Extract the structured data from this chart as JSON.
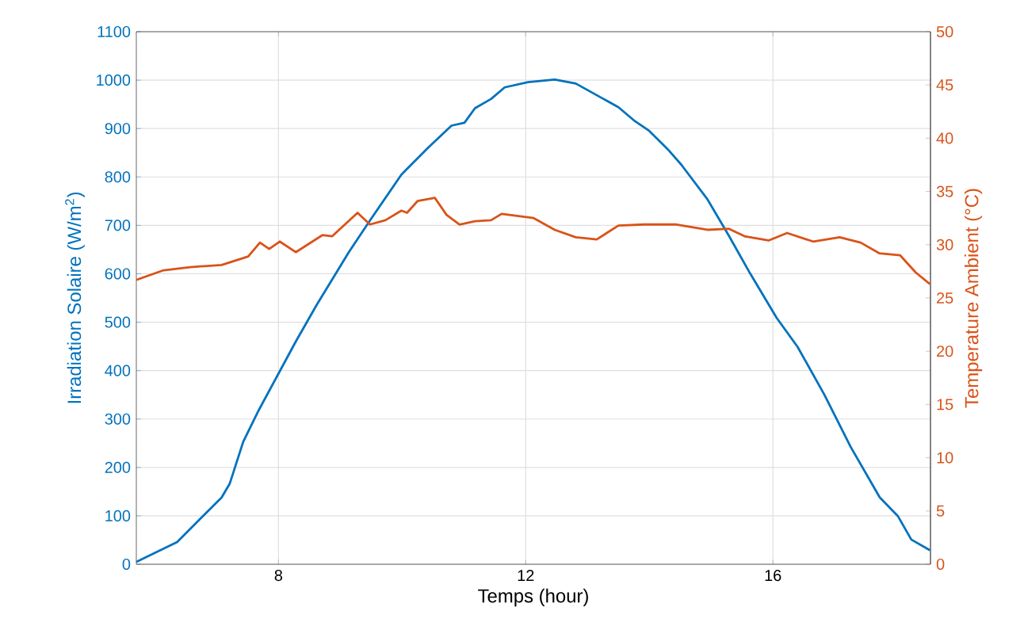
{
  "chart_data": {
    "type": "line",
    "xlabel": "Temps (hour)",
    "ylabel": "Irradiation Solaire (W/m$^{2}$)",
    "y2label": "Temperature Ambient (°C)",
    "xlim": [
      5.7,
      18.55
    ],
    "xticks": [
      8,
      12,
      16
    ],
    "ylim": [
      0,
      1100
    ],
    "yticks": [
      0,
      100,
      200,
      300,
      400,
      500,
      600,
      700,
      800,
      900,
      1000,
      1100
    ],
    "y2lim": [
      0,
      50
    ],
    "y2ticks": [
      0,
      5,
      10,
      15,
      20,
      25,
      30,
      35,
      40,
      45,
      50
    ],
    "grid": true,
    "series": [
      {
        "color": "#0072bd",
        "x": [
          5.7,
          6.36,
          7.08,
          7.21,
          7.43,
          7.68,
          8.28,
          8.62,
          9.14,
          9.48,
          9.99,
          10.42,
          10.8,
          11.01,
          11.18,
          11.44,
          11.66,
          12.04,
          12.47,
          12.81,
          13.5,
          13.75,
          14.0,
          14.3,
          14.52,
          14.94,
          15.29,
          15.63,
          16.06,
          16.4,
          16.83,
          17.26,
          17.73,
          18.02,
          18.24,
          18.54
        ],
        "values": [
          5,
          46,
          138,
          166,
          253,
          318,
          460,
          536,
          645,
          710,
          805,
          860,
          906,
          912,
          942,
          961,
          985,
          996,
          1001,
          993,
          944,
          917,
          895,
          857,
          825,
          754,
          678,
          601,
          509,
          449,
          351,
          242,
          138,
          100,
          51,
          29
        ]
      },
      {
        "color": "#d95319",
        "axis": "y2",
        "x": [
          5.7,
          6.14,
          6.57,
          7.08,
          7.51,
          7.7,
          7.85,
          8.02,
          8.28,
          8.71,
          8.87,
          9.28,
          9.48,
          9.73,
          9.99,
          10.08,
          10.25,
          10.53,
          10.72,
          10.93,
          11.18,
          11.44,
          11.61,
          12.13,
          12.47,
          12.81,
          13.15,
          13.5,
          13.92,
          14.44,
          14.94,
          15.29,
          15.54,
          15.93,
          16.23,
          16.65,
          17.08,
          17.42,
          17.72,
          18.06,
          18.31,
          18.54
        ],
        "values": [
          26.7,
          27.6,
          27.9,
          28.1,
          28.9,
          30.2,
          29.6,
          30.3,
          29.3,
          30.9,
          30.8,
          33.0,
          31.9,
          32.3,
          33.2,
          33.0,
          34.1,
          34.4,
          32.8,
          31.9,
          32.2,
          32.3,
          32.9,
          32.5,
          31.4,
          30.7,
          30.5,
          31.8,
          31.9,
          31.9,
          31.4,
          31.5,
          30.8,
          30.4,
          31.1,
          30.3,
          30.7,
          30.2,
          29.2,
          29.0,
          27.4,
          26.3
        ]
      }
    ]
  }
}
